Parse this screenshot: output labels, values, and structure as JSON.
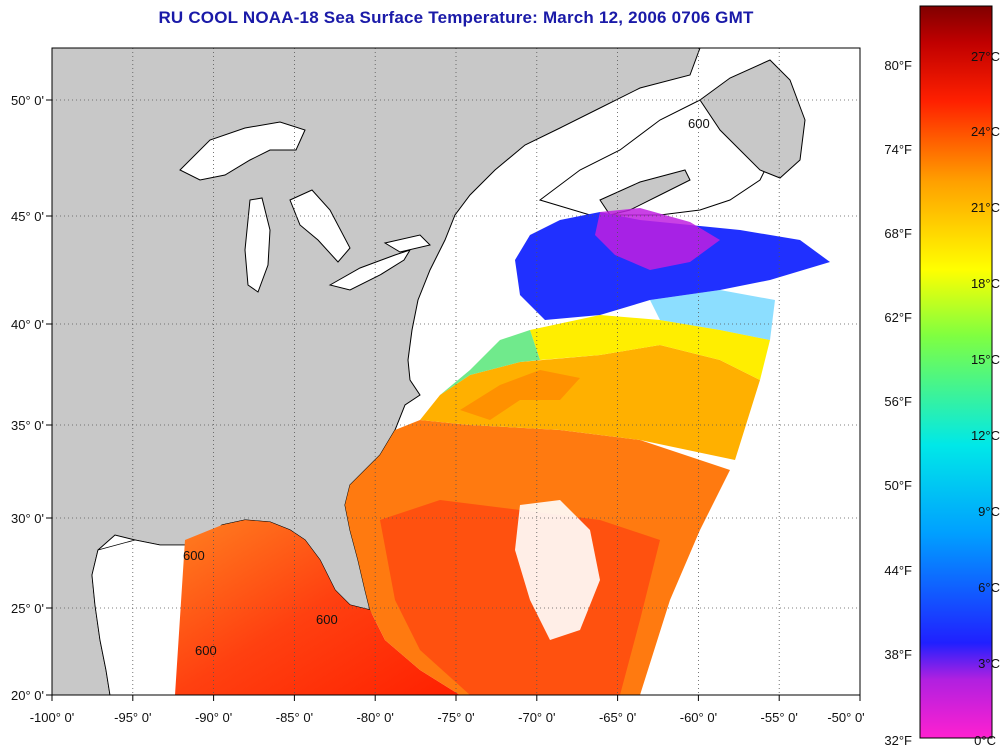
{
  "title": "RU COOL  NOAA-18  Sea Surface Temperature:  March 12, 2006 0706 GMT",
  "map": {
    "lon_range": [
      -100,
      -50
    ],
    "lat_range": [
      20,
      52.3
    ],
    "lon_ticks": [
      "-100° 0'",
      "-95° 0'",
      "-90° 0'",
      "-85° 0'",
      "-80° 0'",
      "-75° 0'",
      "-70° 0'",
      "-65° 0'",
      "-60° 0'",
      "-55° 0'",
      "-50° 0'"
    ],
    "lat_ticks": [
      "20° 0'",
      "25° 0'",
      "30° 0'",
      "35° 0'",
      "40° 0'",
      "45° 0'",
      "50° 0'"
    ],
    "grid": true,
    "bathymetry_contour_label": "600",
    "colors": {
      "land": "#c8c8c8",
      "no_data": "#ffffff",
      "coastline": "#000000"
    }
  },
  "colorbar": {
    "fahrenheit_labels": [
      "80°F",
      "74°F",
      "68°F",
      "62°F",
      "56°F",
      "50°F",
      "44°F",
      "38°F",
      "32°F"
    ],
    "celsius_labels": [
      "27°C",
      "24°C",
      "21°C",
      "18°C",
      "15°C",
      "12°C",
      "9°C",
      "6°C",
      "3°C",
      "0°C"
    ],
    "range_celsius": [
      0,
      29
    ],
    "gradient": [
      "#ff20d0",
      "#b020e0",
      "#2020ff",
      "#00a0ff",
      "#00e8e8",
      "#80ff40",
      "#ffff00",
      "#ffa000",
      "#ff2000",
      "#c00000",
      "#800000"
    ]
  }
}
